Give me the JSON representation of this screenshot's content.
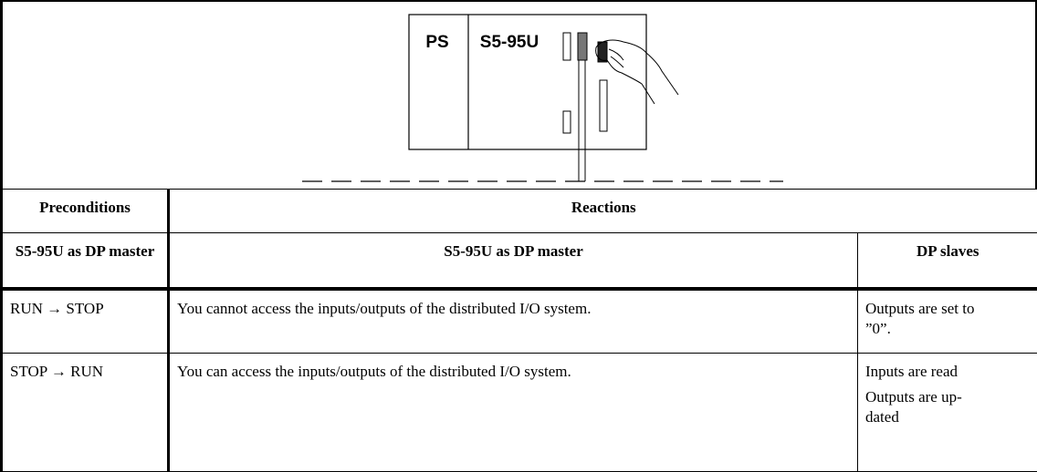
{
  "diagram": {
    "labels": [
      "PS",
      "S5-95U"
    ]
  },
  "table": {
    "header": [
      "Preconditions",
      "Reactions"
    ],
    "subheader": [
      "S5-95U as DP master",
      "S5-95U as DP master",
      "DP slaves"
    ],
    "rows": [
      [
        "RUN → STOP",
        "You cannot access the inputs/outputs of the distributed I/O system.",
        [
          "Outputs are set to ”0”."
        ]
      ],
      [
        "STOP → RUN",
        "You can access the inputs/outputs of the distributed I/O system.",
        [
          "Inputs are read",
          "Outputs are up-dated"
        ]
      ]
    ]
  }
}
